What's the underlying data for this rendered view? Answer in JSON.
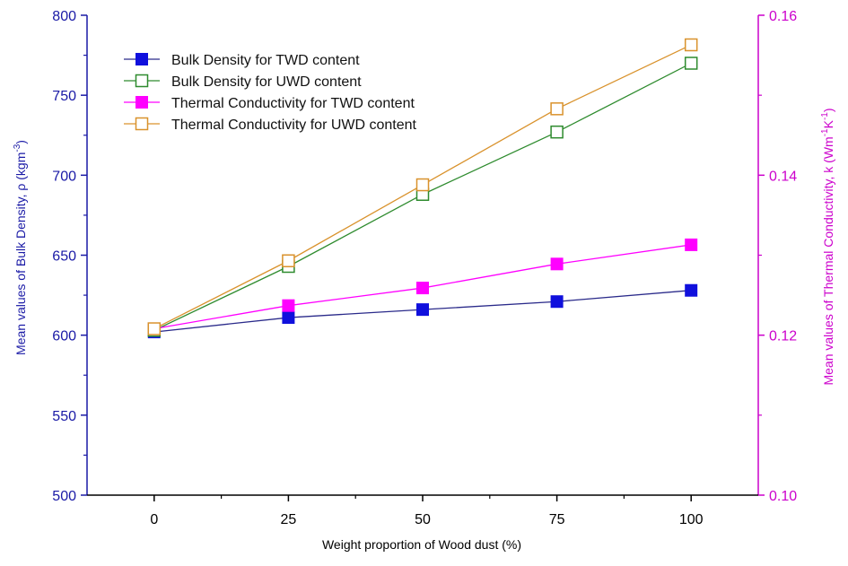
{
  "chart_data": {
    "type": "line",
    "xlabel": "Weight proportion of Wood dust (%)",
    "ylabel_left_main": "Mean values of Bulk Density, ρ (kgm",
    "ylabel_left_sup": "-3",
    "ylabel_left_end": ")",
    "ylabel_right_main": "Mean values of Thermal Conductivity, k (Wm",
    "ylabel_right_sup1": "-1",
    "ylabel_right_mid": "K",
    "ylabel_right_sup2": "-1",
    "ylabel_right_end": ")",
    "x": [
      0,
      25,
      50,
      75,
      100
    ],
    "xlim": [
      -12.5,
      112.5
    ],
    "x_ticks": [
      "0",
      "25",
      "50",
      "75",
      "100"
    ],
    "ylim_left": [
      500,
      800
    ],
    "y_ticks_left": [
      "500",
      "550",
      "600",
      "650",
      "700",
      "750",
      "800"
    ],
    "ylim_right": [
      0.1,
      0.16
    ],
    "y_ticks_right": [
      "0.10",
      "0.12",
      "0.14",
      "0.16"
    ],
    "legend_position": "top-left",
    "series": [
      {
        "name": "Bulk Density for TWD content",
        "axis": "left",
        "marker": "filled-square",
        "marker_color": "#1010dd",
        "line_color": "#2a2a8a",
        "values": [
          602,
          611,
          616,
          621,
          628
        ]
      },
      {
        "name": "Bulk Density for UWD content",
        "axis": "left",
        "marker": "open-square",
        "marker_color": "#2e8b2e",
        "line_color": "#2e8b2e",
        "values": [
          603,
          643,
          688,
          727,
          770
        ]
      },
      {
        "name": "Thermal Conductivity for TWD content",
        "axis": "right",
        "marker": "filled-square",
        "marker_color": "#ff00ff",
        "line_color": "#ff00ff",
        "values": [
          0.1208,
          0.1237,
          0.1259,
          0.1289,
          0.1313
        ]
      },
      {
        "name": "Thermal Conductivity for UWD content",
        "axis": "right",
        "marker": "open-square",
        "marker_color": "#d9922c",
        "line_color": "#d9922c",
        "values": [
          0.1208,
          0.1293,
          0.1388,
          0.1483,
          0.1563
        ]
      }
    ],
    "colors": {
      "left_axis": "#1a1aa6",
      "right_axis": "#cc00cc",
      "x_axis": "#000000"
    }
  }
}
